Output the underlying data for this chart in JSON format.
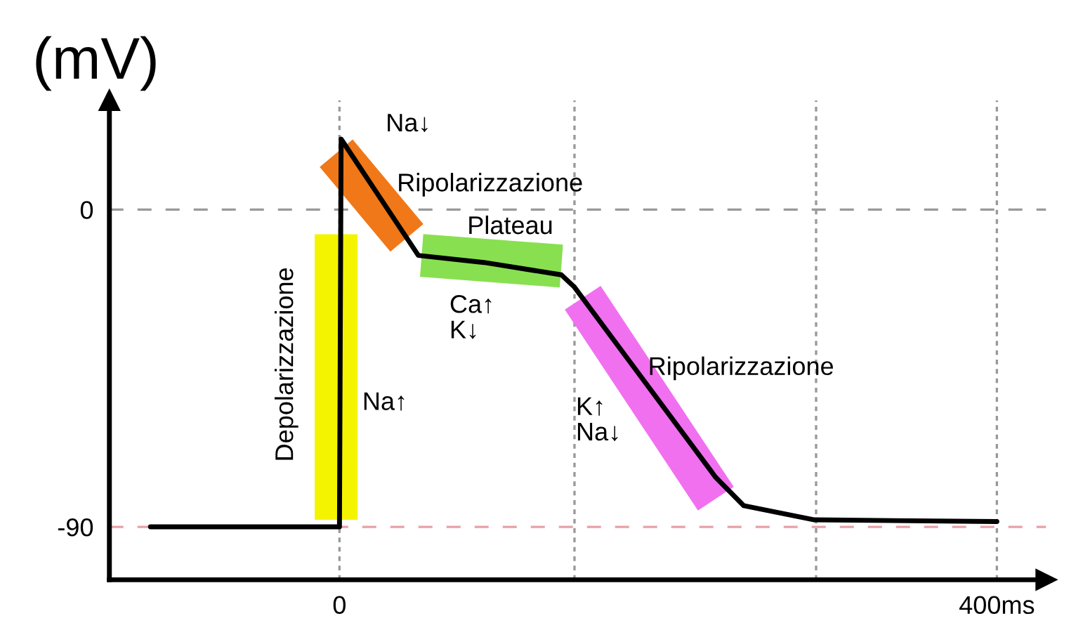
{
  "chart_data": {
    "type": "line",
    "ylabel": "(mV)",
    "xlim": [
      -140,
      430
    ],
    "ylim": [
      -105,
      31
    ],
    "xticks": [
      {
        "value": 0,
        "label": "0"
      },
      {
        "value": 400,
        "label": "400ms"
      }
    ],
    "yticks": [
      0,
      -90
    ],
    "grid": false,
    "legend": false,
    "marker": "none",
    "line_style": "solid",
    "series": [
      {
        "color": "#f07818",
        "x": [
          -2,
          41
        ],
        "values": [
          16,
          -8
        ]
      },
      {
        "color": "#f4f400",
        "x": [
          -2,
          -2
        ],
        "values": [
          -7,
          -88
        ]
      },
      {
        "color": "#88e050",
        "x": [
          50,
          135
        ],
        "values": [
          -13,
          -16
        ]
      },
      {
        "color": "#f070f0",
        "x": [
          148,
          229
        ],
        "values": [
          -25,
          -82
        ]
      },
      {
        "color": "#000000",
        "x": [
          -115,
          0,
          1,
          48,
          88,
          135,
          143,
          229,
          246,
          289,
          400
        ],
        "values": [
          -90,
          -90,
          20,
          -13,
          -15,
          -18.5,
          -22,
          -76,
          -84,
          -88,
          -88.5
        ]
      }
    ],
    "ref_lines": [
      {
        "axis": "y",
        "value": 0,
        "color": "#999999",
        "line_style": "dashed"
      },
      {
        "axis": "y",
        "value": -90,
        "color": "#e8a0a8",
        "line_style": "dashed"
      },
      {
        "axis": "x",
        "value": 0,
        "color": "#999999",
        "line_style": "dotted"
      },
      {
        "axis": "x",
        "value": 143,
        "color": "#999999",
        "line_style": "dotted"
      },
      {
        "axis": "x",
        "value": 290,
        "color": "#999999",
        "line_style": "dotted"
      },
      {
        "axis": "x",
        "value": 400,
        "color": "#999999",
        "line_style": "dotted"
      }
    ],
    "annotations": [
      "Depolarizzazione",
      "Na↓",
      "Ripolarizzazione",
      "Plateau",
      "Ca↑\nK↓",
      "Na↑",
      "Ripolarizzazione",
      "K↑\nNa↓"
    ]
  }
}
